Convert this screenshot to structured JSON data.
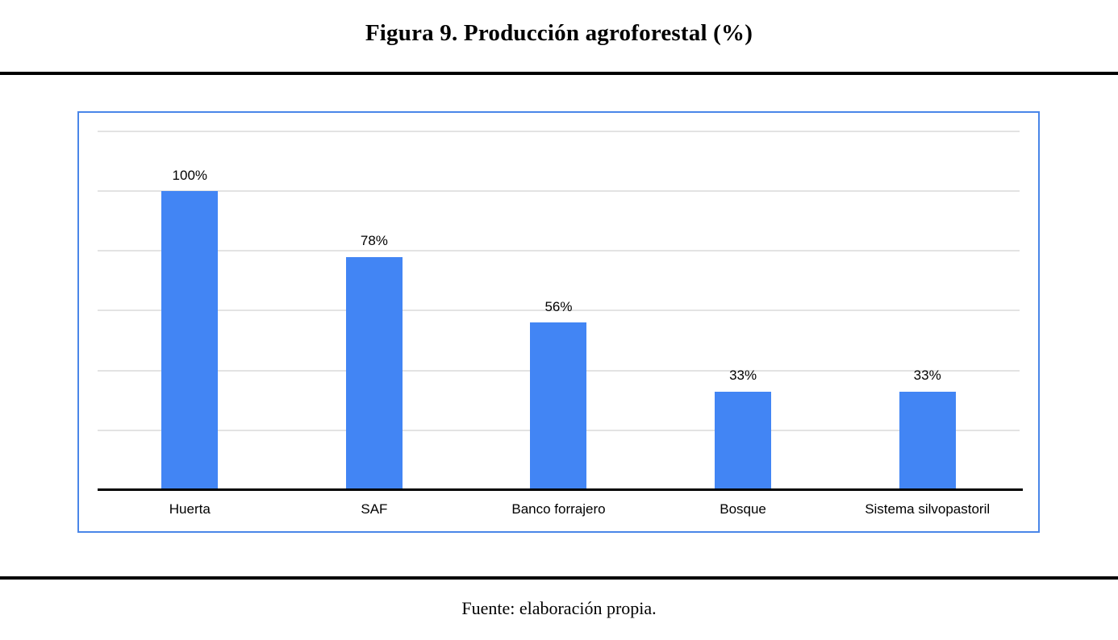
{
  "header": {
    "title": "Figura 9. Producción agroforestal (%)"
  },
  "footer": {
    "source": "Fuente: elaboración propia."
  },
  "chart_data": {
    "type": "bar",
    "title": "Figura 9. Producción agroforestal (%)",
    "categories": [
      "Huerta",
      "SAF",
      "Banco forrajero",
      "Bosque",
      "Sistema silvopastoril"
    ],
    "values": [
      100,
      78,
      56,
      33,
      33
    ],
    "data_labels": [
      "100%",
      "78%",
      "56%",
      "33%",
      "33%"
    ],
    "xlabel": "",
    "ylabel": "",
    "ylim": [
      0,
      120
    ],
    "gridline_step": 20,
    "grid": true,
    "legend": false,
    "y_axis_labels_visible": false,
    "colors": {
      "bar": "#4285f4",
      "frame_border": "#4a86e8",
      "gridline": "#e3e3e3",
      "axis_line": "#000000",
      "text": "#000000"
    }
  }
}
